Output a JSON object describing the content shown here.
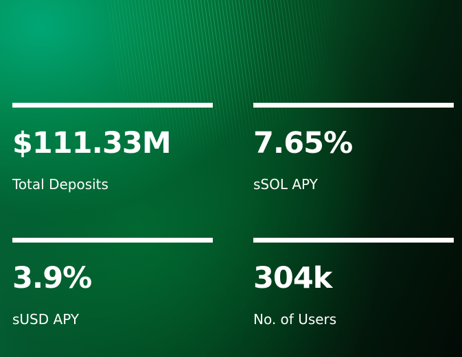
{
  "stats": [
    {
      "value": "$111.33M",
      "label": "Total Deposits"
    },
    {
      "value": "7.65%",
      "label": "sSOL APY"
    },
    {
      "value": "3.9%",
      "label": "sUSD APY"
    },
    {
      "value": "304k",
      "label": "No. of Users"
    }
  ],
  "colors": {
    "text": "#ffffff",
    "accent_green": "#0a8a5a",
    "background_dark": "#020c06"
  }
}
